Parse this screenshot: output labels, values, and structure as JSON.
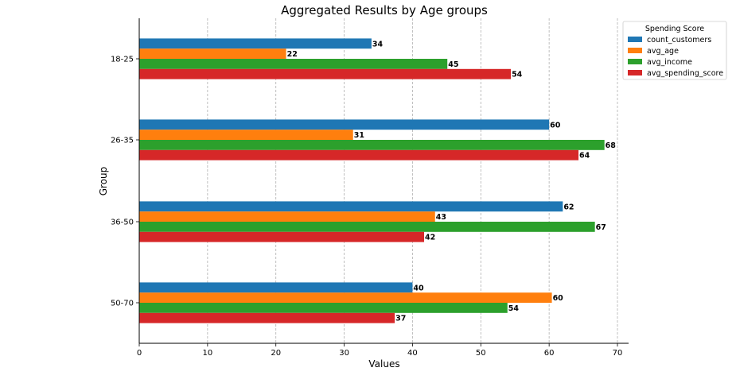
{
  "chart_data": {
    "type": "bar",
    "orientation": "horizontal",
    "title": "Aggregated Results by Age groups",
    "xlabel": "Values",
    "ylabel": "Group",
    "xlim": [
      0,
      71.5
    ],
    "xticks": [
      0,
      10,
      20,
      30,
      40,
      50,
      60,
      70
    ],
    "grid": "x-dashed",
    "categories": [
      "18-25",
      "26-35",
      "36-50",
      "50-70"
    ],
    "legend": {
      "title": "Spending Score",
      "placement": "top-right"
    },
    "series": [
      {
        "name": "count_customers",
        "color": "#1f77b4",
        "values": [
          34,
          60,
          62,
          40
        ]
      },
      {
        "name": "avg_age",
        "color": "#ff7f0e",
        "values": [
          21.5,
          31.3,
          43.3,
          60.4
        ]
      },
      {
        "name": "avg_income",
        "color": "#2ca02c",
        "values": [
          45.1,
          68.1,
          66.7,
          53.9
        ]
      },
      {
        "name": "avg_spending_score",
        "color": "#d62728",
        "values": [
          54.4,
          64.3,
          41.7,
          37.4
        ]
      }
    ],
    "bar_labels": [
      [
        "34",
        "22",
        "45",
        "54"
      ],
      [
        "60",
        "31",
        "68",
        "64"
      ],
      [
        "62",
        "43",
        "67",
        "42"
      ],
      [
        "40",
        "60",
        "54",
        "37"
      ]
    ]
  }
}
